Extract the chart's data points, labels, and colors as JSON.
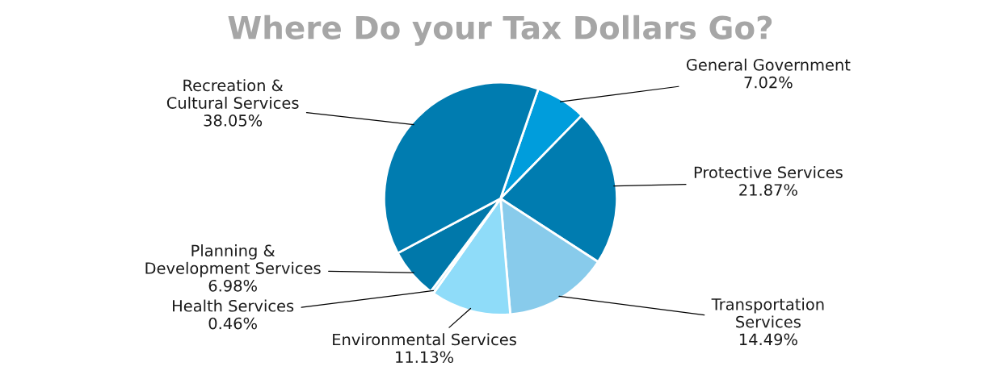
{
  "chart_data": {
    "type": "pie",
    "title": "Where Do your Tax Dollars Go?",
    "categories": [
      "General Government",
      "Protective Services",
      "Transportation Services",
      "Environmental Services",
      "Health Services",
      "Planning & Development Services",
      "Recreation & Cultural Services"
    ],
    "values": [
      7.02,
      21.87,
      14.49,
      11.13,
      0.46,
      6.98,
      38.05
    ],
    "colors": [
      "#009ddc",
      "#007cb0",
      "#88cbeb",
      "#8fdcf9",
      "#b8e6f7",
      "#0078aa",
      "#007cb0"
    ],
    "value_labels": [
      "7.02%",
      "21.87%",
      "14.49%",
      "11.13%",
      "0.46%",
      "6.98%",
      "38.05%"
    ]
  }
}
